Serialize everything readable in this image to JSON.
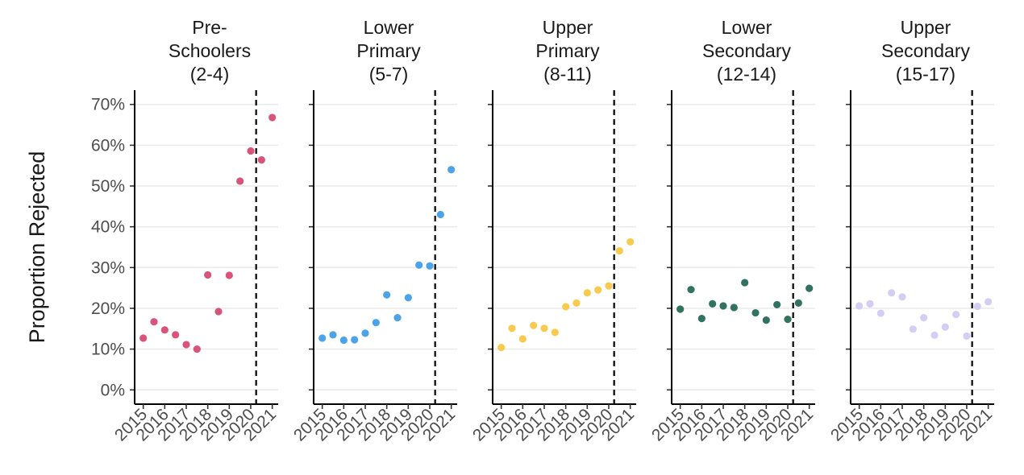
{
  "chart_data": {
    "type": "scatter",
    "ylabel": "Proportion Rejected",
    "xlabel": "",
    "x_ticks": [
      "2015",
      "2016",
      "2017",
      "2018",
      "2019",
      "2020",
      "2021"
    ],
    "xlim": [
      2014.9,
      2021.2
    ],
    "y_ticks": [
      "0%",
      "10%",
      "20%",
      "30%",
      "40%",
      "50%",
      "60%",
      "70%"
    ],
    "ylim": [
      -3.5,
      73.5
    ],
    "grid": "horizontal",
    "reference_line": {
      "x": 2020.25,
      "style": "dashed"
    },
    "facets": [
      {
        "title": [
          "Pre-",
          "Schoolers",
          "(2-4)"
        ],
        "color": "#D6456F",
        "points": [
          {
            "x": 2015.0,
            "y": 12.7
          },
          {
            "x": 2015.5,
            "y": 16.7
          },
          {
            "x": 2016.0,
            "y": 14.7
          },
          {
            "x": 2016.5,
            "y": 13.5
          },
          {
            "x": 2017.0,
            "y": 11.1
          },
          {
            "x": 2017.5,
            "y": 10.0
          },
          {
            "x": 2018.0,
            "y": 28.2
          },
          {
            "x": 2018.5,
            "y": 19.2
          },
          {
            "x": 2019.0,
            "y": 28.1
          },
          {
            "x": 2019.5,
            "y": 51.2
          },
          {
            "x": 2020.0,
            "y": 58.6
          },
          {
            "x": 2020.5,
            "y": 56.4
          },
          {
            "x": 2021.0,
            "y": 66.8
          }
        ]
      },
      {
        "title": [
          "Lower",
          "Primary",
          "(5-7)"
        ],
        "color": "#3D9BE6",
        "points": [
          {
            "x": 2015.0,
            "y": 12.7
          },
          {
            "x": 2015.5,
            "y": 13.5
          },
          {
            "x": 2016.0,
            "y": 12.2
          },
          {
            "x": 2016.5,
            "y": 12.3
          },
          {
            "x": 2017.0,
            "y": 13.9
          },
          {
            "x": 2017.5,
            "y": 16.5
          },
          {
            "x": 2018.0,
            "y": 23.3
          },
          {
            "x": 2018.5,
            "y": 17.7
          },
          {
            "x": 2019.0,
            "y": 22.6
          },
          {
            "x": 2019.5,
            "y": 30.6
          },
          {
            "x": 2020.0,
            "y": 30.4
          },
          {
            "x": 2020.5,
            "y": 43.0
          },
          {
            "x": 2021.0,
            "y": 54.0
          }
        ]
      },
      {
        "title": [
          "Upper",
          "Primary",
          "(8-11)"
        ],
        "color": "#F7C740",
        "points": [
          {
            "x": 2015.0,
            "y": 10.4
          },
          {
            "x": 2015.5,
            "y": 15.1
          },
          {
            "x": 2016.0,
            "y": 12.5
          },
          {
            "x": 2016.5,
            "y": 15.8
          },
          {
            "x": 2017.0,
            "y": 15.1
          },
          {
            "x": 2017.5,
            "y": 14.1
          },
          {
            "x": 2018.0,
            "y": 20.4
          },
          {
            "x": 2018.5,
            "y": 21.3
          },
          {
            "x": 2019.0,
            "y": 23.8
          },
          {
            "x": 2019.5,
            "y": 24.5
          },
          {
            "x": 2020.0,
            "y": 25.5
          },
          {
            "x": 2020.5,
            "y": 34.1
          },
          {
            "x": 2021.0,
            "y": 36.3
          }
        ]
      },
      {
        "title": [
          "Lower",
          "Secondary",
          "(12-14)"
        ],
        "color": "#216654",
        "points": [
          {
            "x": 2015.0,
            "y": 19.8
          },
          {
            "x": 2015.5,
            "y": 24.6
          },
          {
            "x": 2016.0,
            "y": 17.5
          },
          {
            "x": 2016.5,
            "y": 21.1
          },
          {
            "x": 2017.0,
            "y": 20.6
          },
          {
            "x": 2017.5,
            "y": 20.2
          },
          {
            "x": 2018.0,
            "y": 26.3
          },
          {
            "x": 2018.5,
            "y": 18.9
          },
          {
            "x": 2019.0,
            "y": 17.1
          },
          {
            "x": 2019.5,
            "y": 20.9
          },
          {
            "x": 2020.0,
            "y": 17.3
          },
          {
            "x": 2020.5,
            "y": 21.3
          },
          {
            "x": 2021.0,
            "y": 24.9
          }
        ]
      },
      {
        "title": [
          "Upper",
          "Secondary",
          "(15-17)"
        ],
        "color": "#D2C9F2",
        "points": [
          {
            "x": 2015.0,
            "y": 20.6
          },
          {
            "x": 2015.5,
            "y": 21.1
          },
          {
            "x": 2016.0,
            "y": 18.8
          },
          {
            "x": 2016.5,
            "y": 23.8
          },
          {
            "x": 2017.0,
            "y": 22.8
          },
          {
            "x": 2017.5,
            "y": 14.9
          },
          {
            "x": 2018.0,
            "y": 17.7
          },
          {
            "x": 2018.5,
            "y": 13.4
          },
          {
            "x": 2019.0,
            "y": 15.4
          },
          {
            "x": 2019.5,
            "y": 18.5
          },
          {
            "x": 2020.0,
            "y": 13.2
          },
          {
            "x": 2020.5,
            "y": 20.5
          },
          {
            "x": 2021.0,
            "y": 21.6
          }
        ]
      }
    ]
  }
}
